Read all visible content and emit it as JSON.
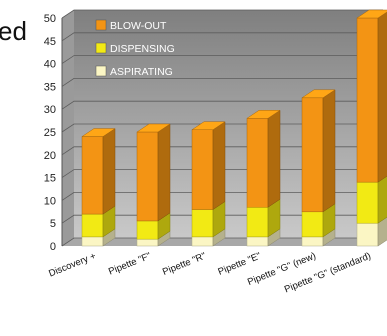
{
  "truncated_title": "ed",
  "colors": {
    "blow_out": "#f39414",
    "dispensing": "#f2ea14",
    "aspirating": "#fbf6c4",
    "plot_bg_top": "#7f7f7f",
    "plot_bg_bottom": "#c9c9c9",
    "floor": "#a8a8a8"
  },
  "chart_data": {
    "type": "bar",
    "stacked": true,
    "three_d": true,
    "categories": [
      "Discovery +",
      "Pipette \"F\"",
      "Pipette \"R\"",
      "Pipette \"E\"",
      "Pipette \"G\" (new)",
      "Pipette \"G\" (standard)"
    ],
    "series": [
      {
        "name": "ASPIRATING",
        "values": [
          2,
          1.5,
          2,
          2,
          2,
          5
        ]
      },
      {
        "name": "DISPENSING",
        "values": [
          5,
          4,
          6,
          6.5,
          5.5,
          9
        ]
      },
      {
        "name": "BLOW-OUT",
        "values": [
          17,
          19.5,
          17.5,
          19.5,
          25,
          36
        ]
      }
    ],
    "legend_order": [
      "BLOW-OUT",
      "DISPENSING",
      "ASPIRATING"
    ],
    "legend_position": "top-left",
    "ylim": [
      0,
      50
    ],
    "yticks": [
      0,
      5,
      10,
      15,
      20,
      25,
      30,
      35,
      40,
      45,
      50
    ],
    "grid": true,
    "xlabel": "",
    "ylabel": ""
  }
}
